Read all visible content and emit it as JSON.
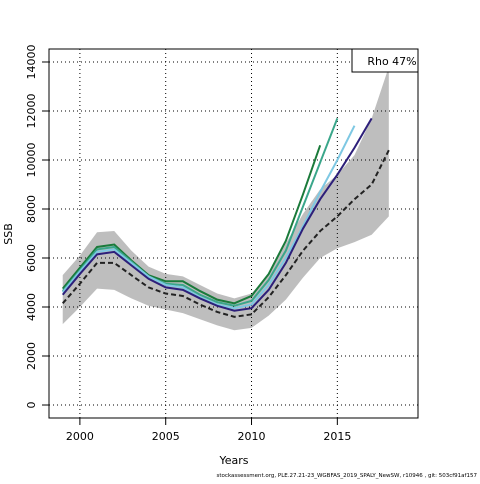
{
  "chart_data": {
    "type": "line",
    "x_label": "Years",
    "y_label": "SSB",
    "legend_text": "Rho 47%",
    "footer": "stockassessment.org, PLE.27.21-23_WGBFAS_2019_SPALY_NewSW, r10946 , git: 503cf91af157",
    "x": [
      1999,
      2000,
      2001,
      2002,
      2003,
      2004,
      2005,
      2006,
      2007,
      2008,
      2009,
      2010,
      2011,
      2012,
      2013,
      2014,
      2015,
      2016,
      2017,
      2018
    ],
    "xlim": [
      1998.2,
      2019.7
    ],
    "xticks": [
      2000,
      2005,
      2010,
      2015
    ],
    "ylim": [
      -530,
      14530
    ],
    "yticks": [
      0,
      2000,
      4000,
      6000,
      8000,
      10000,
      12000,
      14000
    ],
    "grid": true,
    "band": {
      "color": "#bebebe",
      "lower": [
        3300,
        4000,
        4750,
        4700,
        4350,
        4050,
        3900,
        3750,
        3500,
        3250,
        3050,
        3150,
        3650,
        4300,
        5200,
        6000,
        6400,
        6650,
        6950,
        7700
      ],
      "upper": [
        5300,
        6100,
        7050,
        7100,
        6300,
        5650,
        5350,
        5250,
        4900,
        4550,
        4350,
        4550,
        5350,
        6600,
        7800,
        8800,
        9400,
        10200,
        11700,
        13800
      ]
    },
    "series": [
      {
        "color": "#1a7a3a",
        "values": [
          4750,
          5600,
          6450,
          6550,
          5900,
          5300,
          5050,
          5050,
          4650,
          4300,
          4150,
          4450,
          5350,
          6700,
          8600,
          10600,
          null,
          null,
          null,
          null
        ]
      },
      {
        "color": "#3aa68a",
        "values": [
          4650,
          5500,
          6350,
          6450,
          5850,
          5250,
          4950,
          4900,
          4500,
          4200,
          4050,
          4250,
          5100,
          6300,
          8100,
          9900,
          11700,
          null,
          null,
          null
        ]
      },
      {
        "color": "#7ec8e3",
        "values": [
          4600,
          5450,
          6250,
          6350,
          5800,
          5250,
          4900,
          4800,
          4400,
          4100,
          3950,
          4100,
          4900,
          6000,
          7300,
          8700,
          10000,
          11400,
          null,
          null
        ]
      },
      {
        "color": "#2d1f7a",
        "values": [
          4500,
          5350,
          6150,
          6250,
          5700,
          5150,
          4800,
          4700,
          4350,
          4050,
          3850,
          3950,
          4700,
          5800,
          7200,
          8400,
          9400,
          10500,
          11700,
          null
        ]
      },
      {
        "color": "#222222",
        "dashed": true,
        "values": [
          4150,
          4950,
          5800,
          5800,
          5300,
          4800,
          4550,
          4450,
          4100,
          3800,
          3600,
          3700,
          4400,
          5300,
          6300,
          7100,
          7700,
          8400,
          9000,
          10400
        ]
      }
    ]
  }
}
